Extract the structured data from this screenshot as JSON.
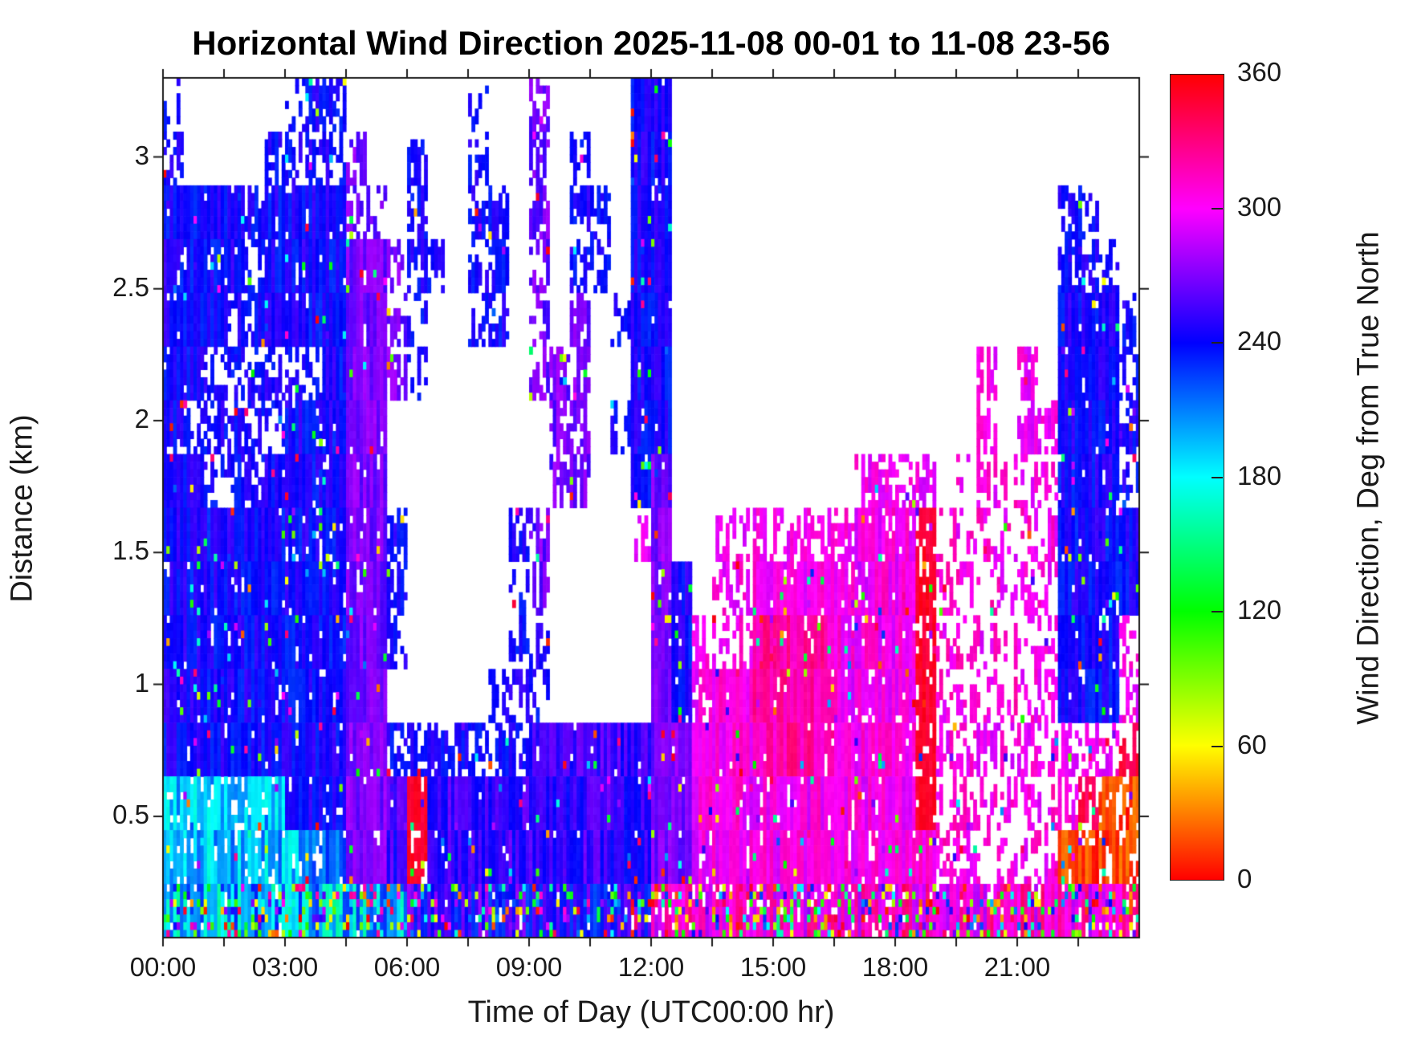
{
  "title": "Horizontal Wind Direction 2025-11-08 00-01 to 11-08 23-56",
  "axes": {
    "x": {
      "label": "Time of Day (UTC00:00 hr)",
      "tick_hours": [
        0,
        3,
        6,
        9,
        12,
        15,
        18,
        21
      ],
      "tick_labels": [
        "00:00",
        "03:00",
        "06:00",
        "09:00",
        "12:00",
        "15:00",
        "18:00",
        "21:00"
      ],
      "minor_tick_hours": [
        1.5,
        4.5,
        7.5,
        10.5,
        13.5,
        16.5,
        19.5,
        22.5
      ],
      "range_hours": [
        0,
        24
      ]
    },
    "y": {
      "label": "Distance (km)",
      "tick_values": [
        0.5,
        1,
        1.5,
        2,
        2.5,
        3
      ],
      "tick_labels": [
        "0.5",
        "1",
        "1.5",
        "2",
        "2.5",
        "3"
      ],
      "range_km": [
        0.04,
        3.3
      ]
    }
  },
  "colorbar": {
    "label": "Wind Direction, Deg from True North",
    "tick_values": [
      360,
      300,
      240,
      180,
      120,
      60,
      0
    ],
    "tick_labels": [
      "360",
      "300",
      "240",
      "180",
      "120",
      "60",
      "0"
    ],
    "range": [
      0,
      360
    ],
    "colormap": "hsv",
    "stop_colors_top_to_bottom": [
      "#ff0000",
      "#ff00ff",
      "#0000ff",
      "#00ffff",
      "#00ff00",
      "#ffff00",
      "#ff0000"
    ]
  },
  "chart_data": {
    "type": "heatmap",
    "title": "Horizontal Wind Direction 2025-11-08 00-01 to 11-08 23-56",
    "xlabel": "Time of Day (UTC00:00 hr)",
    "ylabel": "Distance (km)",
    "value_label": "Wind Direction, Deg from True North",
    "x_range_hours": [
      0,
      24
    ],
    "y_range_km": [
      0.04,
      3.3
    ],
    "value_range_deg": [
      0,
      360
    ],
    "colormap": "hsv (hue = wind direction in degrees)",
    "no_data_color": "#ffffff",
    "grid": {
      "description": "Coarse 48x16 summary of the measured field. Columns = 30-min bins from 00:00 to 24:00. Rows = ~0.20 km bins from 3.3 km (top) down to 0 km (bottom). Each character is a class in 'palette' giving dominant wind direction (hue, deg) and data coverage; '.' = no data (white).",
      "cols": 48,
      "rows": 16,
      "row_strings_top_to_bottom": [
        "s.....sbb......s..u....BB.......................",
        "b....bbbbu..b..b..u.s..BB.......................",
        "BBBBbBBBBuu.b..bb.u.bb.BB...................bb..",
        "BBBBbBBBBPPubs.bb.u.bb.BB...................bbb.",
        "BBBbbBBBBPPus..bb.u.u.sBB...................BBBb",
        "BBbbbbbbBPPus.....uuu..BB...............m.m.BBBb",
        "BbbbbbBBBPP........uu.sBB...............m.mmBBBb",
        "BBbbbBBBBPP........uu..BP.........mmmm.kkkkkBBBb",
        "BBBBBBBBBPPb.....bu....mP..mmmmmmmMMMRkkkkkmBBBB",
        "BBBBBBBBBPPb.....bu.....PB.mmMMMMMMMMRkkkkkmBBBB",
        "BBBBBBBBBPPb.....bb.....PBmmmqqqqMMMMRkkkkkmBBBm",
        "BBBBBBBBBPP.....bbb.....PBmMMqqqqMMMMRkkkkkmBBBm",
        "BBBBBBBBBPPbbbbbbbvvvvvvPPMMMqqqqMMMMRmmmmmmmmmr",
        "ttttttBBBPPvRvvvvvvvvvvvPPMMMMMMMMMMMRkkkkkkkroo",
        "tttttttCCPPvRvvvvvvvvvvvPPMMMMMMMMMMMMkkkkkkoooo",
        "xxxxxxxxxxxxzzzzzzzzzzzzwwwwwwwwwwwwwwwwwwwwwwww"
      ],
      "palette": {
        "B": {
          "deg": 242,
          "jitter": 14,
          "coverage": 0.95,
          "note": "dense blue ~240 deg (SW-W flow)"
        },
        "b": {
          "deg": 242,
          "jitter": 12,
          "coverage": 0.45,
          "note": "patchy blue ~240 deg"
        },
        "s": {
          "deg": 240,
          "jitter": 10,
          "coverage": 0.22,
          "note": "sparse blue specks"
        },
        "v": {
          "deg": 252,
          "jitter": 16,
          "coverage": 0.96,
          "note": "dense blue-violet ~250 deg"
        },
        "P": {
          "deg": 268,
          "jitter": 12,
          "coverage": 0.95,
          "note": "dense purple ~270 deg"
        },
        "u": {
          "deg": 266,
          "jitter": 14,
          "coverage": 0.5,
          "note": "purple vertical streaks"
        },
        "C": {
          "deg": 215,
          "jitter": 18,
          "coverage": 0.9,
          "note": "light blue ~215 deg"
        },
        "t": {
          "deg": 196,
          "jitter": 26,
          "coverage": 0.85,
          "note": "cyan/blue mix ~170-220 deg"
        },
        "M": {
          "deg": 303,
          "jitter": 16,
          "coverage": 0.93,
          "note": "dense magenta ~300 deg (NW flow)"
        },
        "m": {
          "deg": 302,
          "jitter": 14,
          "coverage": 0.45,
          "note": "patchy magenta"
        },
        "k": {
          "deg": 306,
          "jitter": 16,
          "coverage": 0.27,
          "note": "sparse magenta checkerboard"
        },
        "q": {
          "deg": 320,
          "jitter": 14,
          "coverage": 0.95,
          "note": "dense rose/deep pink ~320 deg"
        },
        "R": {
          "deg": 350,
          "jitter": 6,
          "coverage": 0.8,
          "note": "red streak ~350 deg (N flow)"
        },
        "r": {
          "deg": 344,
          "jitter": 10,
          "coverage": 0.4,
          "note": "patchy pink-red"
        },
        "o": {
          "deg": 14,
          "jitter": 16,
          "coverage": 0.75,
          "note": "orange-red cluster ~0-30 deg"
        },
        "x": {
          "deg": 196,
          "jitter": 40,
          "coverage": 0.95,
          "outlier": 0.3,
          "note": "multicolor surface bin, cyan-biased"
        },
        "z": {
          "deg": 250,
          "jitter": 30,
          "coverage": 0.95,
          "outlier": 0.25,
          "note": "multicolor surface bin, blue-biased"
        },
        "w": {
          "deg": 308,
          "jitter": 28,
          "coverage": 0.9,
          "outlier": 0.3,
          "note": "multicolor surface bin, magenta-biased"
        }
      },
      "global_outlier_probability": 0.035
    },
    "regions_summary": [
      "00:00-05:15 — deep blue (~240 deg) layer from surface to 2.8-3.3 km with white gaps near 1.8-2.4 km between 00:40-03:00",
      "00:00-03:30 below 0.6 km — cyan/teal speckle (~180-210 deg)",
      "04:40-05:10 — purple column (~270 deg) through full depth",
      "05:15-08:30 — data only below ~0.8 km (blue), isolated blue strips aloft; red streak (~350 deg) near 06:20 below 0.5 km",
      "08:30-11:30 — blue/purple streaks rising diagonally from 0.8 km to 3.3 km",
      "11:40-12:30 — dense blue/purple column reaching plot top",
      "13:00-18:40 — magenta/rose mass (~300-330 deg) from surface up to ~1.7 km, red streak near 18:35",
      "19:00-22:00 — sparse magenta checkerboard up to ~2.3 km",
      "22:10-24:00 — dense blue mass (~240 deg) 0.9-2.7 km; orange/red cluster (~0-30 deg) near surface after 22:30"
    ]
  }
}
